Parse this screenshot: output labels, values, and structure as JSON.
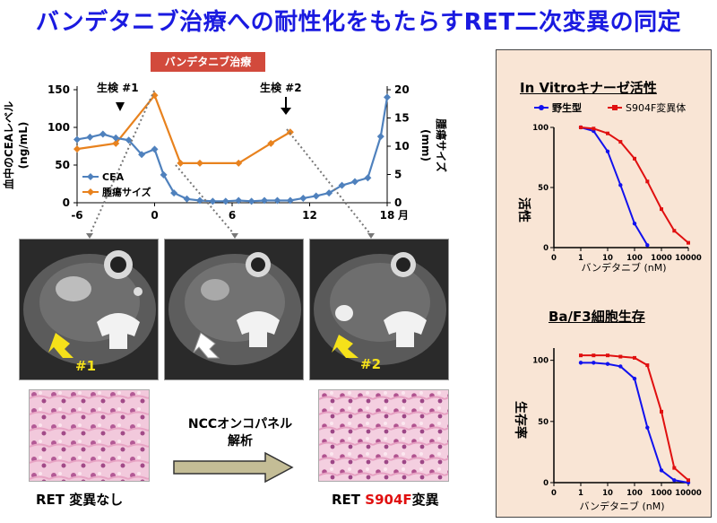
{
  "title": "バンデタニブ治療への耐性化をもたらすRET二次変異の同定",
  "badge": "バンデタニブ治療",
  "timeline": {
    "left_axis_label_1": "血中のCEAレベル",
    "left_axis_label_2": "(ng/mL)",
    "right_axis_label_1": "腫瘍サイズ",
    "right_axis_label_2": "(mm)",
    "left_ticks": [
      "150",
      "100",
      "50",
      "0"
    ],
    "right_ticks": [
      "20",
      "15",
      "10",
      "5",
      "0"
    ],
    "x_ticks": [
      "-6",
      "0",
      "6",
      "12",
      "18"
    ],
    "x_unit": "月",
    "biopsy1": "生検 #1",
    "biopsy2": "生検 #2",
    "legend_cea": "CEA",
    "legend_tumor": "腫瘍サイズ",
    "colors": {
      "cea": "#4f81bd",
      "tumor": "#e8821e"
    }
  },
  "chart_data": [
    {
      "type": "line",
      "title": "",
      "xlabel": "月",
      "x_range": [
        -6,
        18
      ],
      "series": [
        {
          "name": "CEA",
          "axis": "left",
          "ylim": [
            0,
            150
          ],
          "x": [
            -6,
            -5,
            -4,
            -3,
            -2,
            -1,
            0,
            0.7,
            1.5,
            2.5,
            3.5,
            4.5,
            5.5,
            6.5,
            7.5,
            8.5,
            9.5,
            10.5,
            11.5,
            12.5,
            13.5,
            14.5,
            15.5,
            16.5,
            17.5,
            18
          ],
          "values": [
            84,
            87,
            91,
            86,
            83,
            64,
            71,
            37,
            13,
            5,
            3,
            2,
            2,
            3,
            2,
            3,
            3,
            3,
            6,
            9,
            13,
            23,
            28,
            33,
            88,
            140
          ]
        },
        {
          "name": "腫瘍サイズ",
          "axis": "right",
          "ylim": [
            0,
            20
          ],
          "x": [
            -6,
            -3,
            0,
            2,
            3.5,
            6.5,
            9,
            10.5
          ],
          "values": [
            9.5,
            10.5,
            19,
            7,
            7,
            7,
            10.5,
            12.5
          ]
        }
      ]
    },
    {
      "type": "line",
      "title": "In Vitroキナーゼ活性",
      "xlabel": "バンデタニブ (nM)",
      "ylabel": "活性",
      "xscale": "log",
      "x_ticks": [
        "0",
        "1",
        "10",
        "100",
        "1000",
        "10000"
      ],
      "y_ticks": [
        "100",
        "50",
        "0"
      ],
      "ylim": [
        0,
        100
      ],
      "series": [
        {
          "name": "野生型",
          "color": "#1111ee",
          "x": [
            1,
            3,
            10,
            30,
            100,
            300
          ],
          "values": [
            100,
            97,
            80,
            52,
            20,
            2
          ]
        },
        {
          "name": "S904F変異体",
          "color": "#e01010",
          "x": [
            1,
            3,
            10,
            30,
            100,
            300,
            1000,
            3000,
            10000
          ],
          "values": [
            100,
            99,
            95,
            88,
            74,
            55,
            32,
            14,
            4
          ]
        }
      ]
    },
    {
      "type": "line",
      "title": "Ba/F3細胞生存",
      "xlabel": "バンデタニブ (nM)",
      "ylabel": "生存率",
      "xscale": "log",
      "x_ticks": [
        "0",
        "1",
        "10",
        "100",
        "1000",
        "10000"
      ],
      "y_ticks": [
        "100",
        "50",
        "0"
      ],
      "ylim": [
        0,
        110
      ],
      "series": [
        {
          "name": "野生型",
          "color": "#1111ee",
          "x": [
            1,
            3,
            10,
            30,
            100,
            300,
            1000,
            3000,
            10000
          ],
          "values": [
            98,
            98,
            97,
            95,
            85,
            45,
            10,
            2,
            0
          ]
        },
        {
          "name": "S904F変異体",
          "color": "#e01010",
          "x": [
            1,
            3,
            10,
            30,
            100,
            300,
            1000,
            3000,
            10000
          ],
          "values": [
            104,
            104,
            104,
            103,
            102,
            96,
            58,
            12,
            2
          ]
        }
      ]
    }
  ],
  "panel": {
    "kinase_title": "In Vitroキナーゼ活性",
    "kinase_ylabel": "活性",
    "survival_title": "Ba/F3細胞生存",
    "survival_ylabel": "生存率",
    "xlabel": "バンデタニブ (nM)",
    "legend_wt": "野生型",
    "legend_mut": "S904F変異体",
    "x_ticks": [
      "0",
      "1",
      "10",
      "100",
      "1000",
      "10000"
    ],
    "y_ticks": [
      "100",
      "50",
      "0"
    ]
  },
  "ct_labels": {
    "img1": "#1",
    "img3": "#2"
  },
  "arrow_text_1": "NCCオンコパネル",
  "arrow_text_2": "解析",
  "left_caption": "RET 変異なし",
  "right_caption_prefix": "RET ",
  "right_caption_mut": "S904F",
  "right_caption_suffix": "変異"
}
